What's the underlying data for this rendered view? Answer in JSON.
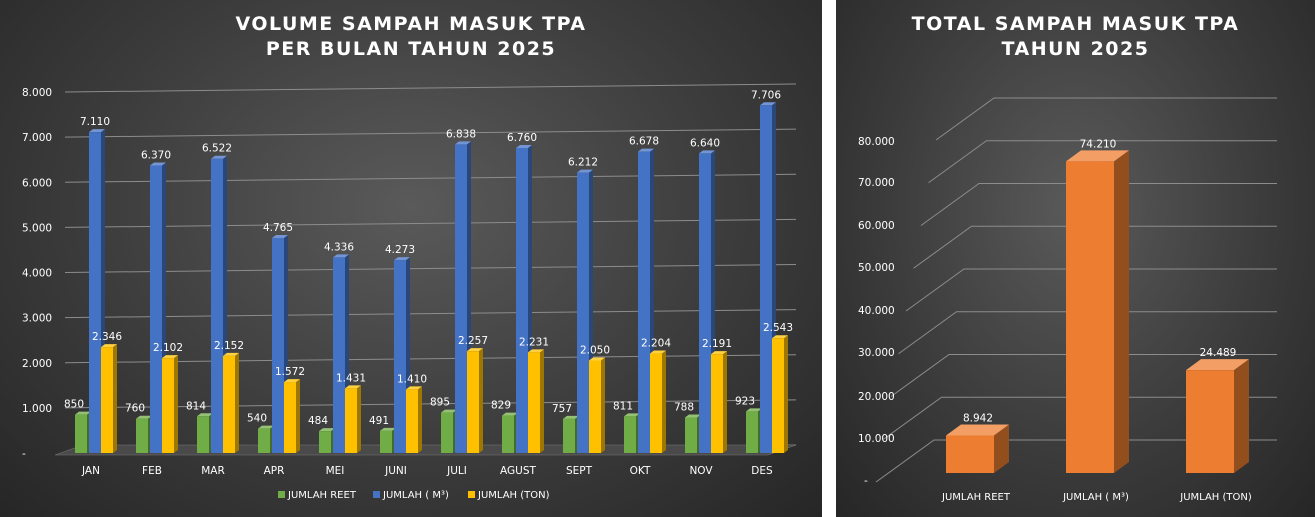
{
  "chart_data": [
    {
      "type": "bar",
      "title_lines": [
        "VOLUME SAMPAH MASUK TPA",
        "PER BULAN TAHUN 2025"
      ],
      "categories": [
        "JAN",
        "FEB",
        "MAR",
        "APR",
        "MEI",
        "JUNI",
        "JULI",
        "AGUST",
        "SEPT",
        "OKT",
        "NOV",
        "DES"
      ],
      "y_ticks": [
        "-",
        "1.000",
        "2.000",
        "3.000",
        "4.000",
        "5.000",
        "6.000",
        "7.000",
        "8.000"
      ],
      "ylim": [
        0,
        8000
      ],
      "grid": true,
      "three_d": true,
      "legend_position": "bottom",
      "series": [
        {
          "name": "JUMLAH REET",
          "color": "#70ad47",
          "values": [
            850,
            760,
            814,
            540,
            484,
            491,
            895,
            829,
            757,
            811,
            788,
            923
          ],
          "labels": [
            "850",
            "760",
            "814",
            "540",
            "484",
            "491",
            "895",
            "829",
            "757",
            "811",
            "788",
            "923"
          ]
        },
        {
          "name": "JUMLAH ( M³)",
          "color": "#4472c4",
          "values": [
            7110,
            6370,
            6522,
            4765,
            4336,
            4273,
            6838,
            6760,
            6212,
            6678,
            6640,
            7706
          ],
          "labels": [
            "7.110",
            "6.370",
            "6.522",
            "4.765",
            "4.336",
            "4.273",
            "6.838",
            "6.760",
            "6.212",
            "6.678",
            "6.640",
            "7.706"
          ]
        },
        {
          "name": "JUMLAH (TON)",
          "color": "#ffc000",
          "values": [
            2346,
            2102,
            2152,
            1572,
            1431,
            1410,
            2257,
            2231,
            2050,
            2204,
            2191,
            2543
          ],
          "labels": [
            "2.346",
            "2.102",
            "2.152",
            "1.572",
            "1.431",
            "1.410",
            "2.257",
            "2.231",
            "2.050",
            "2.204",
            "2.191",
            "2.543"
          ]
        }
      ]
    },
    {
      "type": "bar",
      "title_lines": [
        "TOTAL SAMPAH MASUK TPA",
        "TAHUN 2025"
      ],
      "categories": [
        "JUMLAH REET",
        "JUMLAH ( M³)",
        "JUMLAH (TON)"
      ],
      "values": [
        8942,
        74210,
        24489
      ],
      "labels": [
        "8.942",
        "74.210",
        "24.489"
      ],
      "y_ticks": [
        "-",
        "10.000",
        "20.000",
        "30.000",
        "40.000",
        "50.000",
        "60.000",
        "70.000",
        "80.000"
      ],
      "ylim": [
        0,
        80000
      ],
      "color": "#ed7d31",
      "grid": true,
      "three_d": true
    }
  ]
}
